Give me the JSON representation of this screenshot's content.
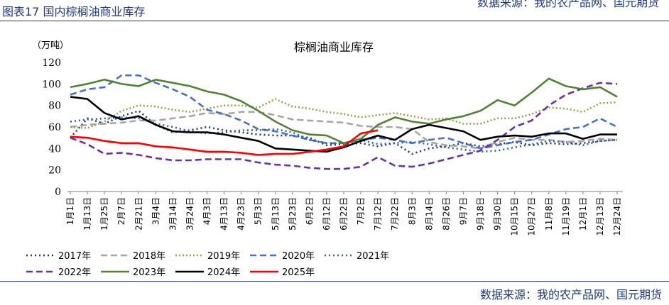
{
  "caption": "图表17  国内棕榈油商业库存",
  "top_source": "数据来源：我的农产品网、国元期货",
  "source_note": "数据来源：我的农产品网、国元期货",
  "chart_data": {
    "type": "line",
    "title": "棕榈油商业库存",
    "ylabel": "（万吨）",
    "xlabel": "",
    "ylim": [
      0,
      120
    ],
    "yticks": [
      0,
      20,
      40,
      60,
      80,
      100,
      120
    ],
    "grid": false,
    "legend_position": "bottom",
    "x": [
      "1月1日",
      "1月13日",
      "1月25日",
      "2月7日",
      "2月21日",
      "3月4日",
      "3月14日",
      "3月24日",
      "4月3日",
      "4月13日",
      "4月23日",
      "5月3日",
      "5月13日",
      "5月23日",
      "6月2日",
      "6月12日",
      "6月22日",
      "7月2日",
      "7月12日",
      "7月22日",
      "8月3日",
      "8月14日",
      "8月26日",
      "9月7日",
      "9月18日",
      "9月30日",
      "10月15日",
      "10月27日",
      "11月8日",
      "11月19日",
      "12月1日",
      "12月13日",
      "12月24日"
    ],
    "series": [
      {
        "name": "2017年",
        "color": "#1f3864",
        "dash": "2 4",
        "values": [
          50,
          68,
          63,
          70,
          75,
          62,
          55,
          57,
          60,
          57,
          55,
          53,
          52,
          52,
          50,
          43,
          44,
          45,
          42,
          45,
          35,
          40,
          42,
          45,
          42,
          44,
          46,
          43,
          45,
          44,
          45,
          47,
          48
        ]
      },
      {
        "name": "2018年",
        "color": "#a6a6a6",
        "dash": "9 5",
        "values": [
          60,
          62,
          63,
          64,
          66,
          66,
          68,
          70,
          73,
          72,
          74,
          74,
          71,
          67,
          66,
          65,
          64,
          61,
          60,
          60,
          58,
          46,
          43,
          42,
          40,
          46,
          50,
          48,
          48,
          46,
          47,
          49,
          48
        ]
      },
      {
        "name": "2019年",
        "color": "#92a54d",
        "dash": "2 3",
        "values": [
          60,
          59,
          65,
          75,
          80,
          79,
          76,
          74,
          77,
          80,
          80,
          78,
          86,
          79,
          77,
          74,
          72,
          69,
          71,
          73,
          70,
          67,
          68,
          63,
          63,
          68,
          68,
          72,
          78,
          77,
          74,
          82,
          83
        ]
      },
      {
        "name": "2020年",
        "color": "#4472c4",
        "dash": "9 5",
        "values": [
          90,
          95,
          97,
          108,
          108,
          101,
          95,
          88,
          76,
          72,
          66,
          58,
          56,
          52,
          48,
          45,
          45,
          48,
          50,
          48,
          45,
          48,
          50,
          45,
          40,
          43,
          46,
          48,
          53,
          58,
          60,
          68,
          60
        ]
      },
      {
        "name": "2021年",
        "color": "#2e5fb5",
        "dash": "2 4",
        "values": [
          65,
          67,
          68,
          69,
          68,
          63,
          60,
          56,
          54,
          55,
          57,
          57,
          58,
          55,
          48,
          45,
          45,
          48,
          44,
          45,
          46,
          44,
          41,
          39,
          37,
          38,
          41,
          44,
          47,
          46,
          43,
          47,
          48
        ]
      },
      {
        "name": "2022年",
        "color": "#7030a0",
        "dash": "9 5",
        "values": [
          50,
          44,
          35,
          36,
          34,
          31,
          29,
          29,
          30,
          30,
          30,
          27,
          25,
          24,
          22,
          21,
          21,
          23,
          32,
          24,
          23,
          26,
          30,
          34,
          38,
          48,
          60,
          66,
          80,
          90,
          96,
          101,
          100
        ]
      },
      {
        "name": "2023年",
        "color": "#548235",
        "dash": "",
        "values": [
          97,
          100,
          104,
          100,
          98,
          104,
          101,
          98,
          93,
          90,
          84,
          75,
          65,
          57,
          53,
          52,
          45,
          49,
          62,
          69,
          65,
          63,
          67,
          70,
          75,
          85,
          80,
          92,
          105,
          98,
          95,
          97,
          88
        ]
      },
      {
        "name": "2024年",
        "color": "#000000",
        "dash": "",
        "values": [
          88,
          86,
          73,
          67,
          70,
          62,
          56,
          55,
          55,
          53,
          50,
          47,
          40,
          39,
          38,
          37,
          41,
          47,
          52,
          48,
          58,
          62,
          59,
          56,
          48,
          51,
          52,
          51,
          54,
          54,
          49,
          53,
          53
        ]
      },
      {
        "name": "2025年",
        "color": "#ff0000",
        "dash": "",
        "values": [
          51,
          50,
          47,
          45,
          45,
          42,
          41,
          39,
          37,
          37,
          36,
          34,
          35,
          35,
          37,
          39,
          42,
          54,
          57,
          null,
          null,
          null,
          null,
          null,
          null,
          null,
          null,
          null,
          null,
          null,
          null,
          null,
          null
        ]
      }
    ]
  }
}
